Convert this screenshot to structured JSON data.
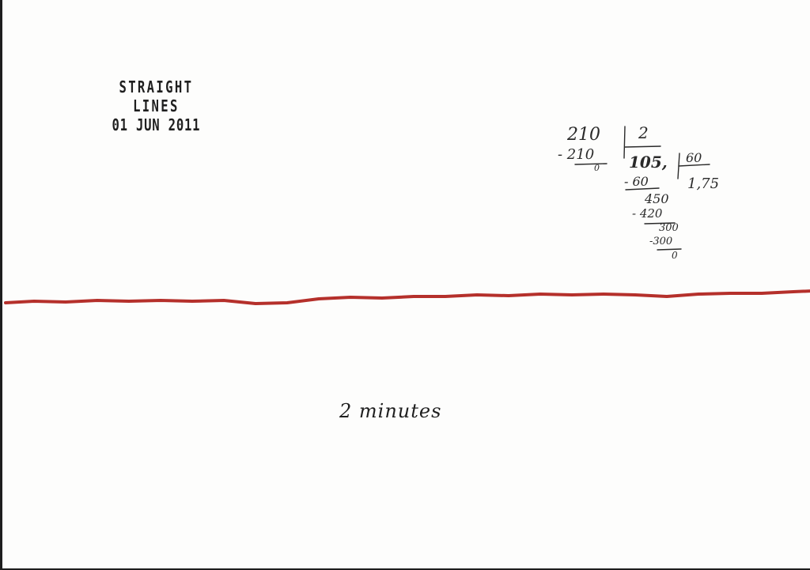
{
  "stamp": {
    "title": "STRAIGHT LINES",
    "date": "01 JUN 2011"
  },
  "calculation": {
    "dividend": "210",
    "divisor_1": "2",
    "subtract_1": "- 210",
    "remainder_1": "0",
    "quotient_1": "105,",
    "divisor_2": "60",
    "subtract_2": "- 60",
    "partial_2": "450",
    "subtract_3": "- 420",
    "partial_3": "300",
    "subtract_4": "-300",
    "remainder_final": "0",
    "quotient_2": "1,75"
  },
  "drawn_line": {
    "color": "#b5302b"
  },
  "caption": {
    "text": "2 minutes"
  }
}
